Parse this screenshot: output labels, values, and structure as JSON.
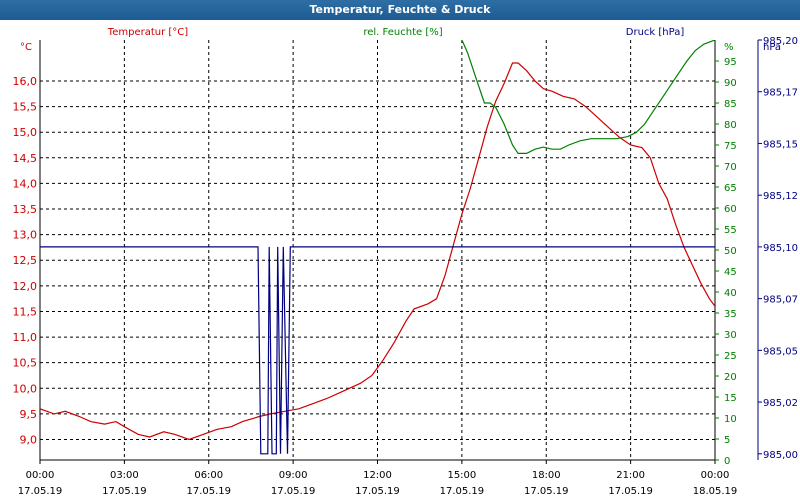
{
  "window": {
    "title": "Temperatur, Feuchte & Druck"
  },
  "chart_data": {
    "type": "line",
    "title": "Temperatur, Feuchte & Druck",
    "grid": true,
    "x": {
      "ticks": [
        {
          "time": "00:00",
          "date": "17.05.19",
          "hours": 0
        },
        {
          "time": "03:00",
          "date": "17.05.19",
          "hours": 3
        },
        {
          "time": "06:00",
          "date": "17.05.19",
          "hours": 6
        },
        {
          "time": "09:00",
          "date": "17.05.19",
          "hours": 9
        },
        {
          "time": "12:00",
          "date": "17.05.19",
          "hours": 12
        },
        {
          "time": "15:00",
          "date": "17.05.19",
          "hours": 15
        },
        {
          "time": "18:00",
          "date": "17.05.19",
          "hours": 18
        },
        {
          "time": "21:00",
          "date": "17.05.19",
          "hours": 21
        },
        {
          "time": "00:00",
          "date": "18.05.19",
          "hours": 24
        }
      ],
      "range_hours": [
        0,
        24
      ]
    },
    "axes": {
      "temperature": {
        "label": "Temperatur [°C]",
        "unit": "°C",
        "color": "#cc0000",
        "ylim": [
          8.6,
          16.8
        ],
        "ticks": [
          "9,0",
          "9,5",
          "10,0",
          "10,5",
          "11,0",
          "11,5",
          "12,0",
          "12,5",
          "13,0",
          "13,5",
          "14,0",
          "14,5",
          "15,0",
          "15,5",
          "16,0"
        ],
        "tick_values": [
          9.0,
          9.5,
          10.0,
          10.5,
          11.0,
          11.5,
          12.0,
          12.5,
          13.0,
          13.5,
          14.0,
          14.5,
          15.0,
          15.5,
          16.0
        ]
      },
      "humidity": {
        "label": "rel. Feuchte [%]",
        "unit": "%",
        "color": "#008000",
        "ylim": [
          0,
          100
        ],
        "ticks": [
          "0",
          "5",
          "10",
          "15",
          "20",
          "25",
          "30",
          "35",
          "40",
          "45",
          "50",
          "55",
          "60",
          "65",
          "70",
          "75",
          "80",
          "85",
          "90",
          "95"
        ],
        "tick_values": [
          0,
          5,
          10,
          15,
          20,
          25,
          30,
          35,
          40,
          45,
          50,
          55,
          60,
          65,
          70,
          75,
          80,
          85,
          90,
          95
        ]
      },
      "pressure": {
        "label": "Druck [hPa]",
        "unit": "hPa",
        "color": "#000080",
        "ylim": [
          984.997,
          985.2
        ],
        "ticks": [
          "985,00",
          "985,02",
          "985,05",
          "985,07",
          "985,10",
          "985,12",
          "985,15",
          "985,17",
          "985,20"
        ],
        "tick_values": [
          985.0,
          985.025,
          985.05,
          985.075,
          985.1,
          985.125,
          985.15,
          985.175,
          985.2
        ]
      }
    },
    "series": [
      {
        "name": "Temperatur [°C]",
        "axis": "temperature",
        "color": "#cc0000",
        "points": [
          [
            0,
            9.6
          ],
          [
            0.5,
            9.5
          ],
          [
            0.9,
            9.55
          ],
          [
            1.4,
            9.45
          ],
          [
            1.8,
            9.35
          ],
          [
            2.3,
            9.3
          ],
          [
            2.7,
            9.35
          ],
          [
            3.0,
            9.25
          ],
          [
            3.5,
            9.1
          ],
          [
            3.9,
            9.05
          ],
          [
            4.4,
            9.15
          ],
          [
            4.8,
            9.1
          ],
          [
            5.3,
            9.0
          ],
          [
            5.8,
            9.1
          ],
          [
            6.3,
            9.2
          ],
          [
            6.8,
            9.25
          ],
          [
            7.2,
            9.35
          ],
          [
            7.8,
            9.45
          ],
          [
            8.2,
            9.5
          ],
          [
            8.7,
            9.55
          ],
          [
            9.2,
            9.6
          ],
          [
            9.7,
            9.7
          ],
          [
            10.2,
            9.8
          ],
          [
            10.6,
            9.9
          ],
          [
            11.0,
            10.0
          ],
          [
            11.4,
            10.1
          ],
          [
            11.8,
            10.25
          ],
          [
            12.2,
            10.55
          ],
          [
            12.6,
            10.9
          ],
          [
            13.0,
            11.3
          ],
          [
            13.3,
            11.55
          ],
          [
            13.8,
            11.65
          ],
          [
            14.1,
            11.75
          ],
          [
            14.4,
            12.2
          ],
          [
            14.7,
            12.8
          ],
          [
            15.0,
            13.4
          ],
          [
            15.3,
            13.9
          ],
          [
            15.6,
            14.5
          ],
          [
            15.9,
            15.1
          ],
          [
            16.2,
            15.6
          ],
          [
            16.5,
            15.95
          ],
          [
            16.8,
            16.35
          ],
          [
            17.0,
            16.35
          ],
          [
            17.3,
            16.2
          ],
          [
            17.6,
            16.0
          ],
          [
            17.9,
            15.85
          ],
          [
            18.2,
            15.8
          ],
          [
            18.6,
            15.7
          ],
          [
            19.0,
            15.65
          ],
          [
            19.4,
            15.5
          ],
          [
            19.8,
            15.3
          ],
          [
            20.2,
            15.1
          ],
          [
            20.6,
            14.9
          ],
          [
            21.0,
            14.75
          ],
          [
            21.4,
            14.7
          ],
          [
            21.7,
            14.5
          ],
          [
            22.0,
            14.0
          ],
          [
            22.3,
            13.7
          ],
          [
            22.6,
            13.2
          ],
          [
            22.9,
            12.75
          ],
          [
            23.2,
            12.4
          ],
          [
            23.5,
            12.05
          ],
          [
            23.8,
            11.75
          ],
          [
            24.0,
            11.6
          ]
        ]
      },
      {
        "name": "rel. Feuchte [%]",
        "axis": "humidity",
        "color": "#008000",
        "points": [
          [
            15.0,
            100
          ],
          [
            15.2,
            97
          ],
          [
            15.5,
            91
          ],
          [
            15.8,
            85
          ],
          [
            16.0,
            85
          ],
          [
            16.2,
            84
          ],
          [
            16.5,
            80
          ],
          [
            16.8,
            75
          ],
          [
            17.0,
            73
          ],
          [
            17.3,
            73
          ],
          [
            17.6,
            74
          ],
          [
            17.9,
            74.5
          ],
          [
            18.2,
            74
          ],
          [
            18.5,
            74
          ],
          [
            18.8,
            75
          ],
          [
            19.2,
            76
          ],
          [
            19.6,
            76.5
          ],
          [
            20.0,
            76.5
          ],
          [
            20.5,
            76.5
          ],
          [
            20.9,
            77
          ],
          [
            21.2,
            78
          ],
          [
            21.5,
            80
          ],
          [
            21.8,
            83
          ],
          [
            22.1,
            86
          ],
          [
            22.4,
            89
          ],
          [
            22.7,
            92
          ],
          [
            23.0,
            95
          ],
          [
            23.3,
            97.5
          ],
          [
            23.6,
            99
          ],
          [
            24.0,
            100
          ]
        ]
      },
      {
        "name": "Druck [hPa]",
        "axis": "pressure",
        "color": "#000080",
        "points": [
          [
            0,
            985.1
          ],
          [
            7.6,
            985.1
          ],
          [
            7.75,
            985.1
          ],
          [
            7.85,
            985.0
          ],
          [
            8.1,
            985.0
          ],
          [
            8.15,
            985.1
          ],
          [
            8.25,
            985.0
          ],
          [
            8.4,
            985.0
          ],
          [
            8.45,
            985.1
          ],
          [
            8.55,
            985.0
          ],
          [
            8.65,
            985.1
          ],
          [
            8.8,
            985.0
          ],
          [
            8.9,
            985.1
          ],
          [
            24.0,
            985.1
          ]
        ]
      }
    ]
  }
}
